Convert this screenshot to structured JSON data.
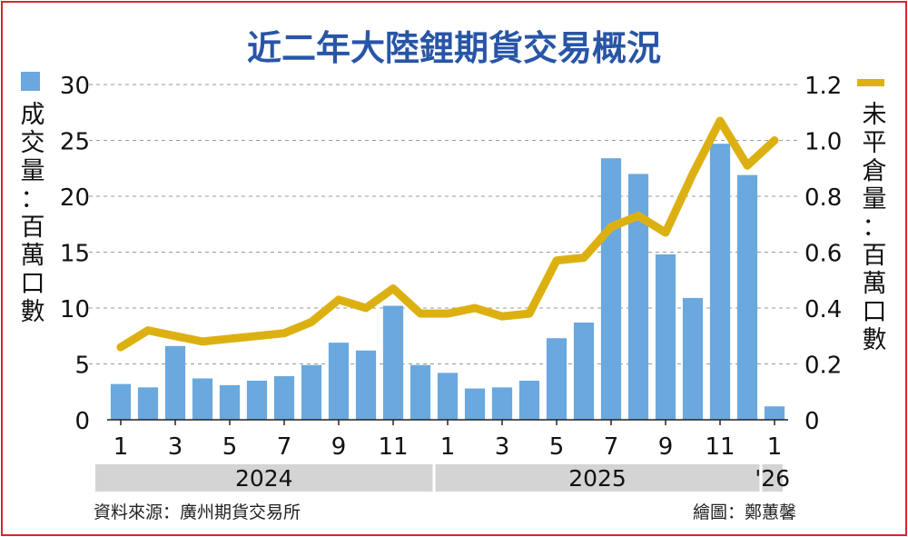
{
  "chart_data": {
    "type": "bar+line",
    "title": "近二年大陸鋰期貨交易概況",
    "left_axis": {
      "label_lines": [
        "成",
        "交",
        "量",
        "：",
        "百",
        "萬",
        "口",
        "數"
      ],
      "ticks": [
        "0",
        "5",
        "10",
        "15",
        "20",
        "25",
        "30"
      ],
      "ylim": [
        0,
        30
      ]
    },
    "right_axis": {
      "label_lines": [
        "未",
        "平",
        "倉",
        "量",
        "：",
        "百",
        "萬",
        "口",
        "數"
      ],
      "ticks": [
        "0",
        "0.2",
        "0.4",
        "0.6",
        "0.8",
        "1.0",
        "1.2"
      ],
      "ylim": [
        0,
        1.2
      ]
    },
    "x": [
      "2024-01",
      "2024-02",
      "2024-03",
      "2024-04",
      "2024-05",
      "2024-06",
      "2024-07",
      "2024-08",
      "2024-09",
      "2024-10",
      "2024-11",
      "2024-12",
      "2025-01",
      "2025-02",
      "2025-03",
      "2025-04",
      "2025-05",
      "2025-06",
      "2025-07",
      "2025-08",
      "2025-09",
      "2025-10",
      "2025-11",
      "2025-12",
      "2026-01"
    ],
    "month_ticks": [
      "1",
      "",
      "3",
      "",
      "5",
      "",
      "7",
      "",
      "9",
      "",
      "11",
      "",
      "1",
      "",
      "3",
      "",
      "5",
      "",
      "7",
      "",
      "9",
      "",
      "11",
      "",
      "1"
    ],
    "years": [
      "2024",
      "2025",
      "'26"
    ],
    "series": [
      {
        "values": [
          3.2,
          2.9,
          6.6,
          3.7,
          3.1,
          3.5,
          3.9,
          4.9,
          6.9,
          6.2,
          10.2,
          4.9,
          4.2,
          2.8,
          2.9,
          3.5,
          7.3,
          8.7,
          23.4,
          22.0,
          14.8,
          10.9,
          24.7,
          21.9,
          1.2
        ]
      },
      {
        "values": [
          0.26,
          0.32,
          0.3,
          0.28,
          0.29,
          0.3,
          0.31,
          0.35,
          0.43,
          0.4,
          0.47,
          0.38,
          0.38,
          0.4,
          0.37,
          0.38,
          0.57,
          0.58,
          0.69,
          0.73,
          0.67,
          0.88,
          1.07,
          0.91,
          1.0
        ]
      }
    ],
    "colors": {
      "bar": "#6aa8de",
      "line": "#ddb012",
      "title": "#2855a6",
      "border": "#d9262c",
      "grid": "#9a9a9a",
      "year_band": "#d4d4d4"
    },
    "grid": true
  },
  "footer": {
    "source": "資料來源：廣州期貨交易所",
    "credit": "繪圖：鄭蕙馨"
  }
}
